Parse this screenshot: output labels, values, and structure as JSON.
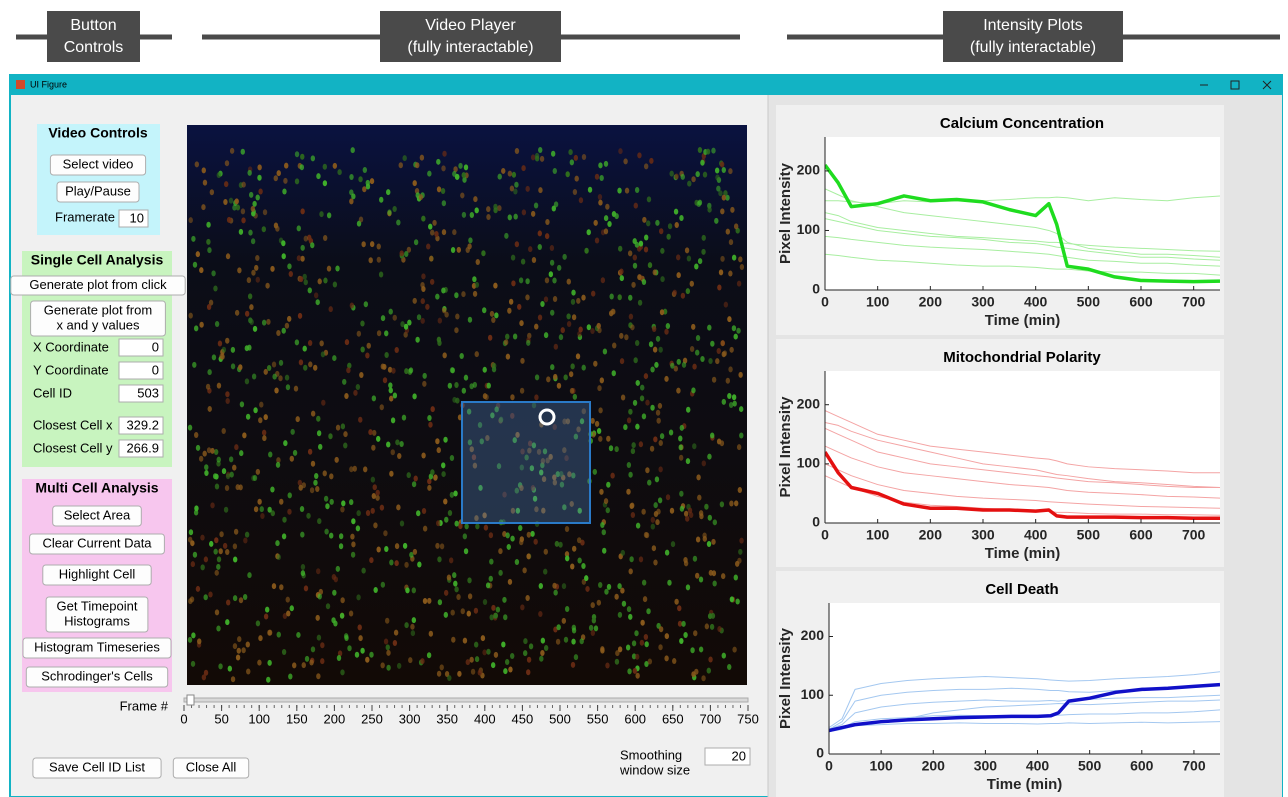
{
  "annotations": [
    {
      "lines": [
        "Button",
        "Controls"
      ]
    },
    {
      "lines": [
        "Video Player",
        "(fully interactable)"
      ]
    },
    {
      "lines": [
        "Intensity Plots",
        "(fully interactable)"
      ]
    }
  ],
  "window": {
    "title": "UI Figure"
  },
  "video_controls": {
    "title": "Video Controls",
    "buttons": [
      {
        "lines": [
          "Select video"
        ]
      },
      {
        "lines": [
          "Play/Pause"
        ]
      }
    ],
    "framerate_label": "Framerate",
    "framerate": 10
  },
  "single_cell": {
    "title": "Single Cell Analysis",
    "buttons": [
      {
        "lines": [
          "Generate plot from click"
        ]
      },
      {
        "lines": [
          "Generate plot from",
          "x and y values"
        ]
      }
    ],
    "fields": [
      {
        "label": "X Coordinate",
        "value": 0
      },
      {
        "label": "Y Coordinate",
        "value": 0
      },
      {
        "label": "Cell ID",
        "value": 503
      },
      {
        "label": "Closest Cell x",
        "value": 329.2
      },
      {
        "label": "Closest Cell y",
        "value": 266.9
      }
    ]
  },
  "multi_cell": {
    "title": "Multi Cell Analysis",
    "buttons": [
      {
        "lines": [
          "Select Area"
        ]
      },
      {
        "lines": [
          "Clear Current Data"
        ]
      },
      {
        "lines": [
          "Highlight Cell"
        ]
      },
      {
        "lines": [
          "Get Timepoint",
          "Histograms"
        ]
      },
      {
        "lines": [
          "Histogram Timeseries"
        ]
      },
      {
        "lines": [
          "Schrodinger's Cells"
        ]
      }
    ]
  },
  "slider": {
    "label": "Frame #",
    "lim": [
      0,
      750
    ],
    "ticks": [
      0,
      50,
      100,
      150,
      200,
      250,
      300,
      350,
      400,
      450,
      500,
      550,
      600,
      650,
      700,
      750
    ],
    "value": 0
  },
  "bottom": {
    "buttons": [
      {
        "lines": [
          "Save Cell ID List"
        ]
      },
      {
        "lines": [
          "Close All"
        ]
      }
    ],
    "smoothing_label": [
      "Smoothing",
      "window size"
    ],
    "smoothing": 20
  },
  "chart_data": [
    {
      "type": "line",
      "title": "Calcium Concentration",
      "xlabel": "Time (min)",
      "ylabel": "Pixel Intensity",
      "x": [
        0,
        25,
        50,
        100,
        150,
        200,
        250,
        300,
        350,
        400,
        425,
        440,
        460,
        500,
        550,
        600,
        650,
        700,
        750
      ],
      "xlim": [
        0,
        750
      ],
      "ylim": [
        0,
        257
      ],
      "xticks": [
        0,
        100,
        200,
        300,
        400,
        500,
        600,
        700
      ],
      "yticks": [
        0,
        100,
        200
      ],
      "series": [
        {
          "color": "#a8eea0",
          "line_width": 1,
          "values": [
            170,
            160,
            150,
            140,
            130,
            125,
            120,
            115,
            110,
            105,
            100,
            95,
            80,
            70,
            65,
            60,
            60,
            58,
            55
          ]
        },
        {
          "color": "#a8eea0",
          "line_width": 1,
          "values": [
            120,
            115,
            110,
            100,
            95,
            90,
            88,
            85,
            80,
            78,
            75,
            72,
            70,
            65,
            60,
            55,
            55,
            52,
            50
          ]
        },
        {
          "color": "#a8eea0",
          "line_width": 1,
          "values": [
            90,
            88,
            85,
            80,
            75,
            72,
            70,
            68,
            65,
            62,
            60,
            58,
            55,
            50,
            48,
            45,
            45,
            42,
            40
          ]
        },
        {
          "color": "#a8eea0",
          "line_width": 1,
          "values": [
            150,
            150,
            148,
            145,
            150,
            148,
            150,
            150,
            152,
            155,
            155,
            156,
            155,
            150,
            155,
            152,
            150,
            155,
            158
          ]
        },
        {
          "color": "#a8eea0",
          "line_width": 1,
          "values": [
            60,
            58,
            55,
            50,
            48,
            45,
            42,
            40,
            40,
            38,
            36,
            35,
            35,
            32,
            30,
            30,
            28,
            28,
            25
          ]
        },
        {
          "color": "#a8eea0",
          "line_width": 1,
          "values": [
            130,
            125,
            115,
            105,
            100,
            95,
            90,
            88,
            85,
            82,
            80,
            80,
            78,
            75,
            72,
            70,
            68,
            66,
            65
          ]
        },
        {
          "color": "#1fdc1f",
          "line_width": 3.5,
          "values": [
            210,
            180,
            140,
            145,
            158,
            150,
            152,
            148,
            135,
            125,
            145,
            110,
            40,
            35,
            22,
            16,
            15,
            14,
            15
          ]
        }
      ]
    },
    {
      "type": "line",
      "title": "Mitochondrial Polarity",
      "xlabel": "Time (min)",
      "ylabel": "Pixel Intensity",
      "x": [
        0,
        25,
        50,
        100,
        150,
        200,
        250,
        300,
        350,
        400,
        425,
        440,
        460,
        500,
        550,
        600,
        650,
        700,
        750
      ],
      "xlim": [
        0,
        750
      ],
      "ylim": [
        0,
        257
      ],
      "xticks": [
        0,
        100,
        200,
        300,
        400,
        500,
        600,
        700
      ],
      "yticks": [
        0,
        100,
        200
      ],
      "series": [
        {
          "color": "#f4a4a4",
          "line_width": 1,
          "values": [
            190,
            180,
            170,
            150,
            140,
            130,
            125,
            120,
            115,
            110,
            108,
            105,
            100,
            95,
            92,
            90,
            88,
            85,
            85
          ]
        },
        {
          "color": "#f4a4a4",
          "line_width": 1,
          "values": [
            160,
            150,
            140,
            120,
            110,
            100,
            95,
            90,
            85,
            80,
            78,
            76,
            74,
            70,
            68,
            65,
            62,
            60,
            60
          ]
        },
        {
          "color": "#f4a4a4",
          "line_width": 1,
          "values": [
            130,
            120,
            110,
            95,
            85,
            80,
            75,
            70,
            65,
            62,
            60,
            58,
            55,
            52,
            50,
            48,
            45,
            44,
            42
          ]
        },
        {
          "color": "#f4a4a4",
          "line_width": 1,
          "values": [
            100,
            90,
            80,
            65,
            55,
            50,
            45,
            42,
            40,
            38,
            36,
            35,
            34,
            32,
            30,
            28,
            27,
            26,
            25
          ]
        },
        {
          "color": "#f4a4a4",
          "line_width": 1,
          "values": [
            80,
            70,
            60,
            45,
            35,
            30,
            28,
            25,
            22,
            20,
            20,
            18,
            18,
            16,
            15,
            15,
            14,
            14,
            13
          ]
        },
        {
          "color": "#f4a4a4",
          "line_width": 1,
          "values": [
            170,
            165,
            155,
            140,
            130,
            120,
            110,
            100,
            95,
            90,
            85,
            82,
            80,
            75,
            70,
            68,
            65,
            62,
            60
          ]
        },
        {
          "color": "#e41010",
          "line_width": 3.5,
          "values": [
            120,
            85,
            60,
            50,
            32,
            25,
            25,
            22,
            22,
            20,
            22,
            12,
            10,
            10,
            10,
            9,
            9,
            8,
            8
          ]
        }
      ]
    },
    {
      "type": "line",
      "title": "Cell Death",
      "xlabel": "Time (min)",
      "ylabel": "Pixel Intensity",
      "x": [
        0,
        25,
        50,
        100,
        150,
        200,
        250,
        300,
        350,
        400,
        425,
        440,
        460,
        500,
        550,
        600,
        650,
        700,
        750
      ],
      "xlim": [
        0,
        750
      ],
      "ylim": [
        0,
        257
      ],
      "xticks": [
        0,
        100,
        200,
        300,
        400,
        500,
        600,
        700
      ],
      "yticks": [
        0,
        100,
        200
      ],
      "series": [
        {
          "color": "#a4c8f0",
          "line_width": 1,
          "values": [
            45,
            60,
            110,
            120,
            125,
            128,
            130,
            132,
            130,
            128,
            126,
            125,
            124,
            125,
            128,
            130,
            132,
            135,
            140
          ]
        },
        {
          "color": "#a4c8f0",
          "line_width": 1,
          "values": [
            42,
            55,
            90,
            100,
            105,
            108,
            110,
            110,
            112,
            110,
            108,
            108,
            106,
            105,
            108,
            110,
            112,
            115,
            118
          ]
        },
        {
          "color": "#a4c8f0",
          "line_width": 1,
          "values": [
            40,
            45,
            55,
            60,
            62,
            65,
            66,
            65,
            64,
            64,
            65,
            66,
            67,
            68,
            68,
            70,
            70,
            72,
            75
          ]
        },
        {
          "color": "#a4c8f0",
          "line_width": 1,
          "values": [
            38,
            42,
            48,
            50,
            52,
            52,
            53,
            52,
            52,
            51,
            52,
            52,
            53,
            52,
            53,
            54,
            53,
            54,
            55
          ]
        },
        {
          "color": "#a4c8f0",
          "line_width": 1,
          "values": [
            42,
            50,
            70,
            80,
            85,
            88,
            90,
            92,
            90,
            90,
            91,
            90,
            92,
            93,
            95,
            96,
            96,
            98,
            100
          ]
        },
        {
          "color": "#a4c8f0",
          "line_width": 1,
          "values": [
            40,
            44,
            50,
            55,
            60,
            70,
            75,
            80,
            82,
            84,
            85,
            86,
            85,
            84,
            86,
            88,
            90,
            90,
            92
          ]
        },
        {
          "color": "#1010c8",
          "line_width": 3.5,
          "values": [
            40,
            45,
            50,
            55,
            58,
            60,
            62,
            63,
            64,
            64,
            65,
            70,
            90,
            95,
            105,
            110,
            112,
            115,
            118
          ]
        }
      ]
    }
  ]
}
